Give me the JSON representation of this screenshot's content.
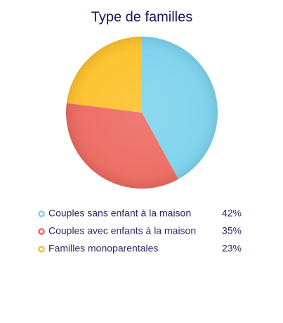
{
  "chart_data": {
    "type": "pie",
    "title": "Type de familles",
    "categories": [
      "Couples sans enfant à la maison",
      "Couples avec enfants à la maison",
      "Familles monoparentales"
    ],
    "values": [
      42,
      35,
      23
    ],
    "value_labels": [
      "42%",
      "35%",
      "23%"
    ],
    "colors": [
      "#7dd3ee",
      "#ec6a60",
      "#fdc12a"
    ]
  }
}
